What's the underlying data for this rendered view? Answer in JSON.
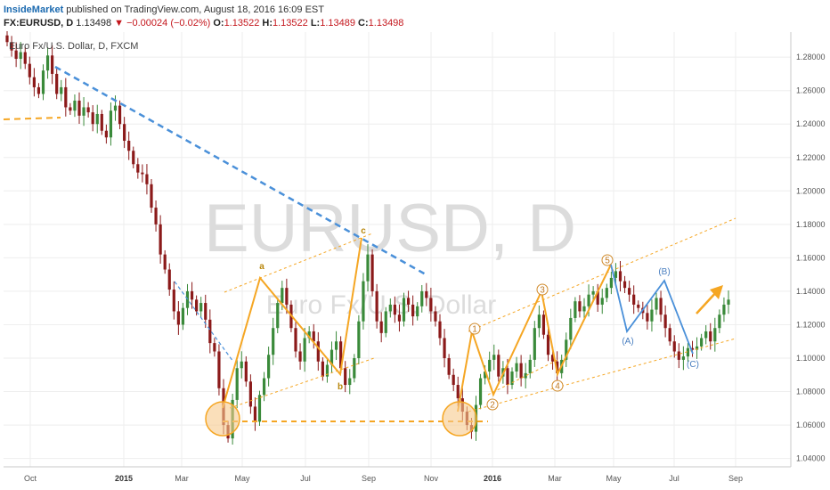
{
  "header": {
    "author": "InsideMarket",
    "published_text": " published on TradingView.com, August 18, 2016 16:09 EST"
  },
  "quote": {
    "symbol": "FX:EURUSD, D",
    "last": "1.13498",
    "change_arrow": "▼",
    "change": "−0.00024 (−0.02%)",
    "o_label": "O:",
    "o": "1.13522",
    "h_label": "H:",
    "h": "1.13522",
    "l_label": "L:",
    "l": "1.13489",
    "c_label": "C:",
    "c": "1.13498"
  },
  "subtitle": "Euro Fx/U.S. Dollar, D, FXCM",
  "watermark": {
    "main": "EURUSD, D",
    "sub": "Euro Fx/U.S. Dollar"
  },
  "colors": {
    "up": "#3a8a3a",
    "down": "#8b1a1a",
    "orange": "#f5a623",
    "blue": "#4a90d9",
    "grid": "#eeeeee"
  },
  "chart_data": {
    "type": "line",
    "ylim": [
      1.035,
      1.295
    ],
    "yticks": [
      "1.28000",
      "1.26000",
      "1.24000",
      "1.22000",
      "1.20000",
      "1.18000",
      "1.16000",
      "1.14000",
      "1.12000",
      "1.10000",
      "1.08000",
      "1.06000",
      "1.04000"
    ],
    "xticks": [
      {
        "label": "Oct",
        "bold": false
      },
      {
        "label": "2015",
        "bold": true
      },
      {
        "label": "Mar",
        "bold": false
      },
      {
        "label": "May",
        "bold": false
      },
      {
        "label": "Jul",
        "bold": false
      },
      {
        "label": "Sep",
        "bold": false
      },
      {
        "label": "Nov",
        "bold": false
      },
      {
        "label": "2016",
        "bold": true
      },
      {
        "label": "Mar",
        "bold": false
      },
      {
        "label": "May",
        "bold": false
      },
      {
        "label": "Jul",
        "bold": false
      },
      {
        "label": "Sep",
        "bold": false
      }
    ],
    "series": [
      {
        "close": [
          1.289,
          1.284,
          1.279,
          1.283,
          1.276,
          1.268,
          1.262,
          1.258,
          1.272,
          1.281,
          1.27,
          1.258,
          1.262,
          1.25,
          1.248,
          1.254,
          1.245,
          1.25,
          1.247,
          1.24,
          1.246,
          1.236,
          1.232,
          1.248,
          1.251,
          1.24,
          1.23,
          1.224,
          1.216,
          1.211,
          1.21,
          1.204,
          1.19,
          1.18,
          1.162,
          1.153,
          1.141,
          1.128,
          1.12,
          1.13,
          1.14,
          1.135,
          1.128,
          1.133,
          1.123,
          1.109,
          1.104,
          1.082,
          1.06,
          1.052,
          1.075,
          1.094,
          1.098,
          1.086,
          1.071,
          1.062,
          1.078,
          1.088,
          1.102,
          1.118,
          1.133,
          1.142,
          1.132,
          1.118,
          1.104,
          1.098,
          1.112,
          1.116,
          1.11,
          1.098,
          1.089,
          1.096,
          1.105,
          1.11,
          1.094,
          1.084,
          1.088,
          1.1,
          1.122,
          1.146,
          1.162,
          1.14,
          1.122,
          1.115,
          1.128,
          1.132,
          1.126,
          1.122,
          1.136,
          1.132,
          1.125,
          1.131,
          1.14,
          1.136,
          1.128,
          1.122,
          1.112,
          1.1,
          1.09,
          1.084,
          1.076,
          1.068,
          1.06,
          1.056,
          1.072,
          1.088,
          1.092,
          1.099,
          1.102,
          1.089,
          1.094,
          1.084,
          1.092,
          1.097,
          1.088,
          1.091,
          1.099,
          1.118,
          1.126,
          1.114,
          1.102,
          1.098,
          1.091,
          1.099,
          1.111,
          1.124,
          1.134,
          1.128,
          1.131,
          1.138,
          1.14,
          1.132,
          1.136,
          1.142,
          1.148,
          1.152,
          1.146,
          1.142,
          1.138,
          1.132,
          1.13,
          1.127,
          1.122,
          1.129,
          1.136,
          1.126,
          1.118,
          1.11,
          1.104,
          1.099,
          1.101,
          1.106,
          1.105,
          1.107,
          1.112,
          1.116,
          1.11,
          1.118,
          1.126,
          1.132,
          1.135
        ]
      }
    ],
    "annotations": {
      "waves_abc": [
        "a",
        "b",
        "c"
      ],
      "waves_impulse": [
        "1",
        "2",
        "3",
        "4",
        "5"
      ],
      "waves_corrective": [
        "(A)",
        "(B)",
        "(C)"
      ]
    }
  }
}
